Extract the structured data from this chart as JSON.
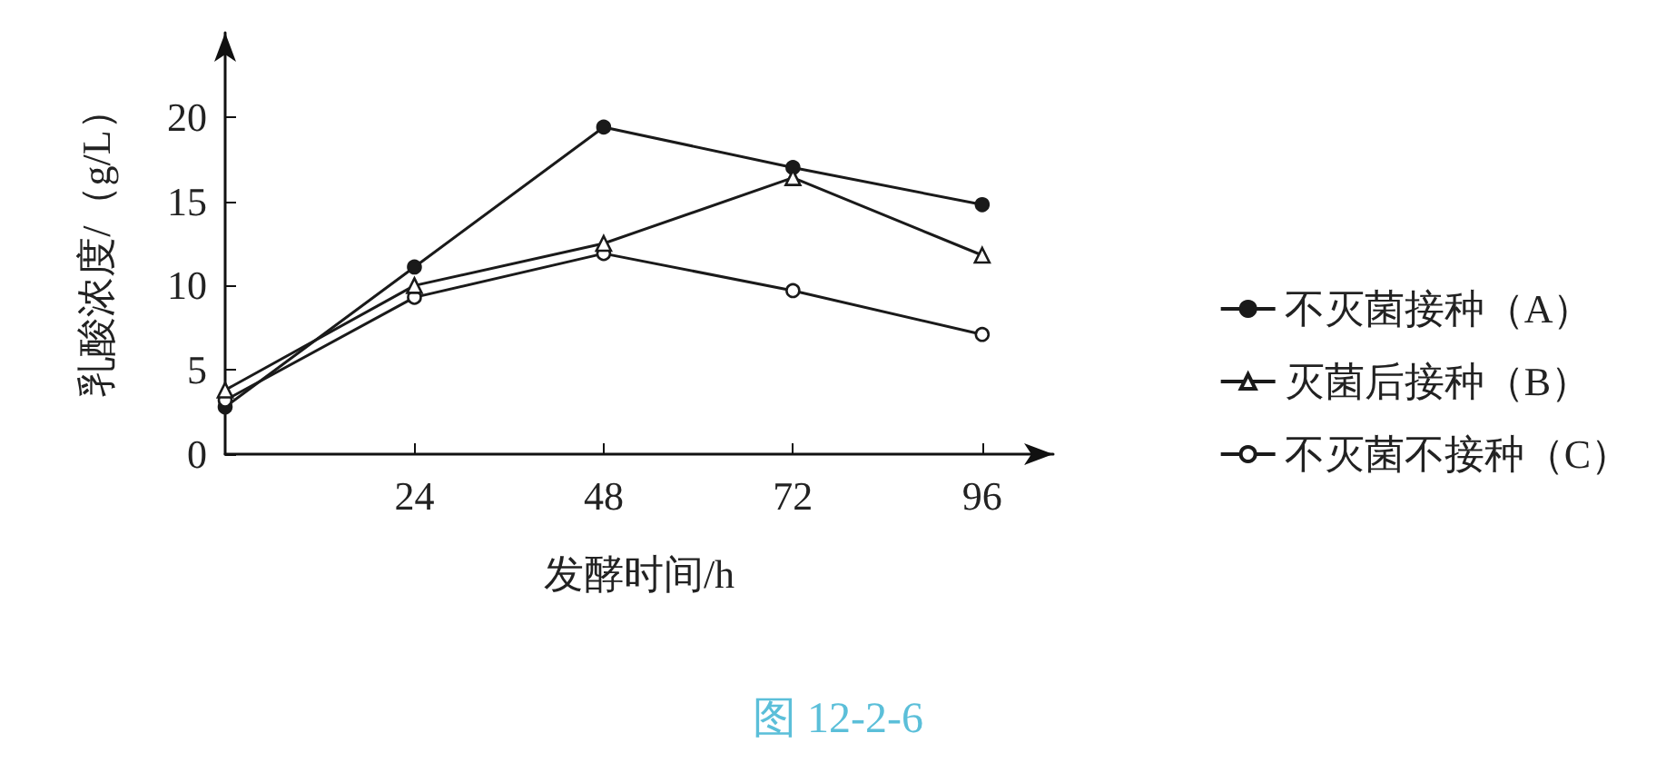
{
  "chart_data": {
    "type": "line",
    "xlabel": "发酵时间/h",
    "ylabel": "乳酸浓度/（g/L）",
    "x": [
      0,
      24,
      48,
      72,
      96
    ],
    "series": [
      {
        "name": "不灭菌接种（A）",
        "color": "#1a1a1a",
        "marker": "circle",
        "values": [
          2.8,
          11.1,
          19.4,
          17.0,
          14.8
        ]
      },
      {
        "name": "灭菌后接种（B）",
        "color": "#1a1a1a",
        "marker": "triangle",
        "colors": [
          "#ffffff",
          "#ffffff",
          "#ffffff",
          "#ffffff",
          "#ffffff"
        ],
        "values": [
          3.8,
          10.0,
          12.5,
          16.4,
          11.8
        ]
      },
      {
        "name": "不灭菌不接种（C）",
        "color": "#1a1a1a",
        "marker": "circle",
        "colors": [
          "#ffffff",
          "#ffffff",
          "#ffffff",
          "#ffffff",
          "#ffffff"
        ],
        "values": [
          3.2,
          9.3,
          11.9,
          9.7,
          7.1
        ]
      }
    ],
    "xlim": [
      0,
      105
    ],
    "xticks": [
      24,
      48,
      72,
      96
    ],
    "ylim": [
      0,
      25
    ],
    "yticks": [
      0,
      5,
      10,
      15,
      20
    ],
    "grid": false,
    "legend": "right",
    "line_style": "solid",
    "annotations": [
      "图 12-2-6"
    ]
  }
}
